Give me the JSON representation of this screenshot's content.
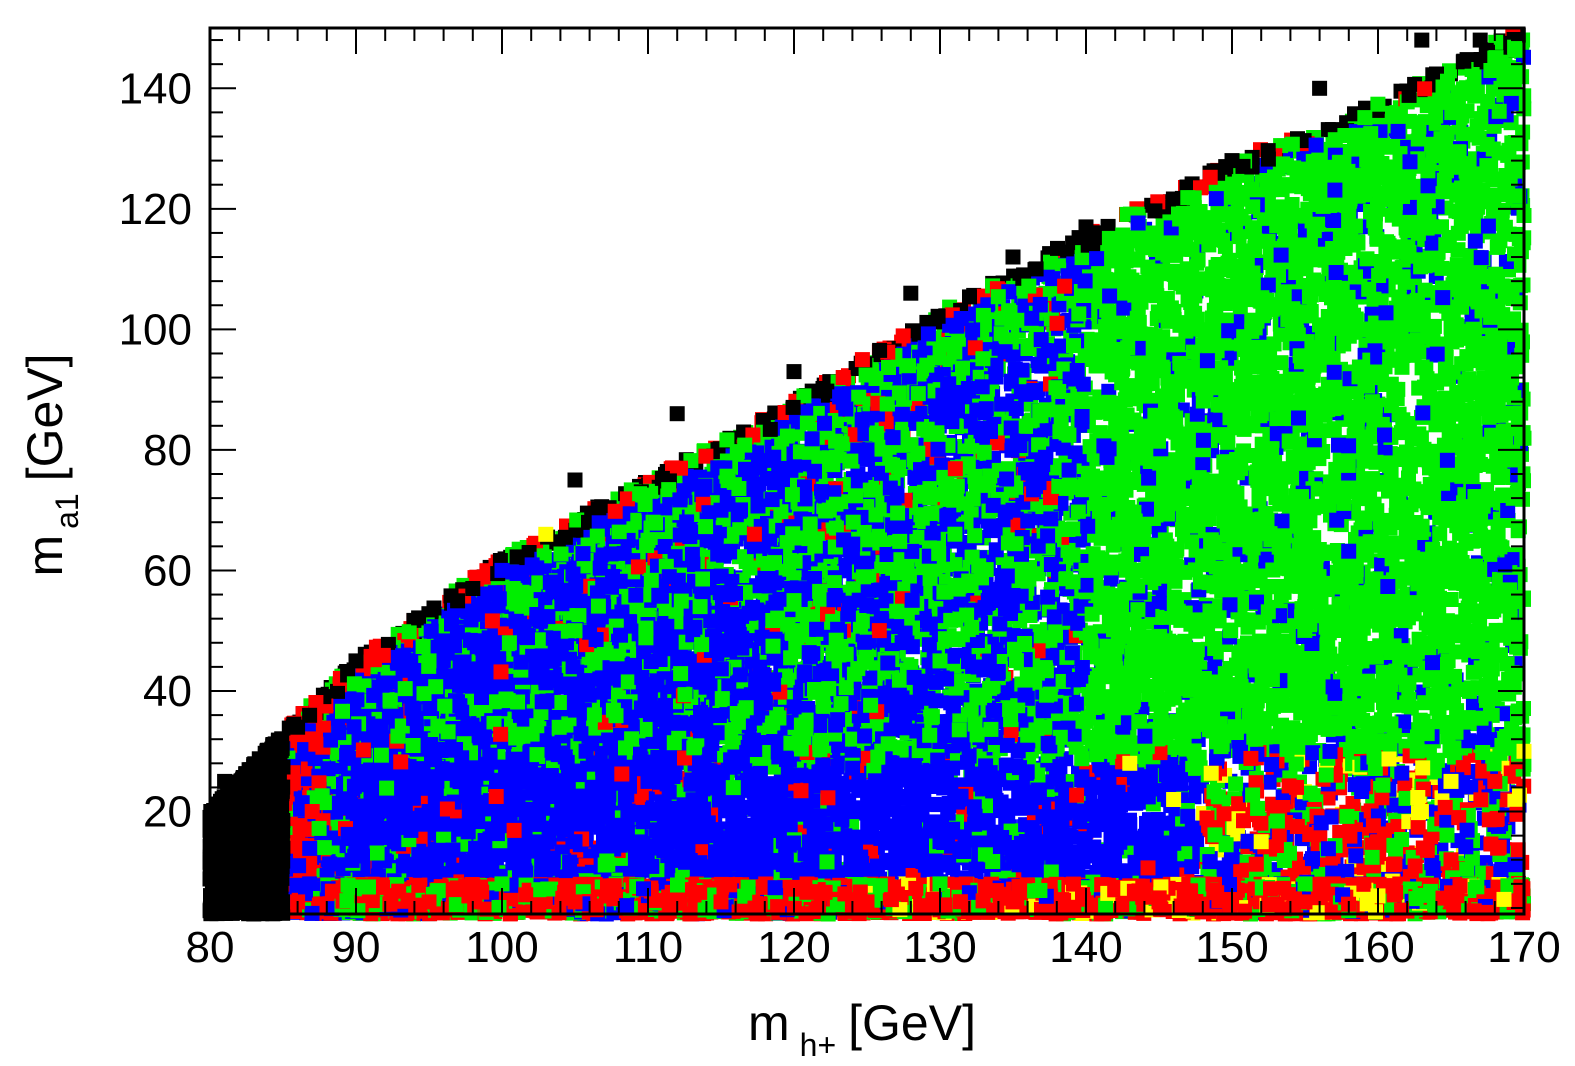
{
  "chart_data": {
    "type": "scatter",
    "title": "",
    "xlabel": {
      "main": "m",
      "sub": "h+",
      "unit": "[GeV]"
    },
    "ylabel": {
      "main": "m",
      "sub": "a1",
      "unit": "[GeV]"
    },
    "xlim": [
      80,
      170
    ],
    "ylim": [
      3,
      150
    ],
    "xticks": [
      80,
      90,
      100,
      110,
      120,
      130,
      140,
      150,
      160,
      170
    ],
    "yticks": [
      20,
      40,
      60,
      80,
      100,
      120,
      140
    ],
    "grid": false,
    "legend": "none",
    "boundary": {
      "description": "upper edge of populated region",
      "points": [
        [
          80,
          20
        ],
        [
          85,
          33
        ],
        [
          90,
          45
        ],
        [
          100,
          62
        ],
        [
          110,
          75
        ],
        [
          120,
          88
        ],
        [
          130,
          103
        ],
        [
          140,
          116
        ],
        [
          150,
          128
        ],
        [
          160,
          138
        ],
        [
          170,
          150
        ]
      ]
    },
    "series": [
      {
        "color": "#000000",
        "region": "fringe along upper edge and low m_h+ corner (m_h+ < 85 GeV)",
        "sample_points": [
          [
            81,
            25
          ],
          [
            82,
            15
          ],
          [
            83,
            10
          ],
          [
            84,
            28
          ],
          [
            86,
            34
          ],
          [
            90,
            45
          ],
          [
            98,
            57
          ],
          [
            105,
            75
          ],
          [
            112,
            86
          ],
          [
            120,
            93
          ],
          [
            128,
            106
          ],
          [
            135,
            112
          ],
          [
            140,
            117
          ],
          [
            150,
            128
          ],
          [
            156,
            140
          ],
          [
            163,
            148
          ],
          [
            167,
            148
          ]
        ]
      },
      {
        "color": "#ff0000",
        "region": "band near m_a1 < 8 GeV across all m_h+, left edge near m_h+ 85-88 GeV, and clusters at m_h+ 150-170, m_a1 10-25 GeV",
        "sample_points": [
          [
            86,
            5
          ],
          [
            95,
            5
          ],
          [
            105,
            5
          ],
          [
            115,
            5
          ],
          [
            125,
            5
          ],
          [
            135,
            5
          ],
          [
            145,
            5
          ],
          [
            155,
            5
          ],
          [
            165,
            5
          ],
          [
            87,
            20
          ],
          [
            160,
            15
          ],
          [
            165,
            12
          ],
          [
            168,
            25
          ]
        ]
      },
      {
        "color": "#0000ff",
        "region": "bulk below m_a1 90 GeV for m_h+ 88-140 GeV",
        "sample_points": [
          [
            95,
            20
          ],
          [
            105,
            15
          ],
          [
            110,
            25
          ],
          [
            120,
            20
          ],
          [
            130,
            15
          ],
          [
            140,
            20
          ],
          [
            100,
            60
          ],
          [
            115,
            70
          ],
          [
            125,
            80
          ],
          [
            135,
            70
          ]
        ]
      },
      {
        "color": "#00ee00",
        "region": "dense above m_a1 ~30 GeV for m_h+ > 140 GeV, scattered throughout blue region, band at m_a1 ~8 GeV",
        "sample_points": [
          [
            95,
            45
          ],
          [
            105,
            50
          ],
          [
            110,
            65
          ],
          [
            120,
            55
          ],
          [
            130,
            45
          ],
          [
            140,
            60
          ],
          [
            150,
            90
          ],
          [
            160,
            120
          ],
          [
            168,
            145
          ],
          [
            100,
            8
          ],
          [
            130,
            8
          ],
          [
            155,
            8
          ]
        ]
      },
      {
        "color": "#ffff00",
        "region": "sparse near m_a1 2-30 GeV for m_h+ > 140 GeV",
        "sample_points": [
          [
            143,
            28
          ],
          [
            152,
            15
          ],
          [
            160,
            6
          ],
          [
            165,
            25
          ],
          [
            170,
            30
          ],
          [
            103,
            66
          ],
          [
            146,
            22
          ]
        ]
      }
    ]
  }
}
